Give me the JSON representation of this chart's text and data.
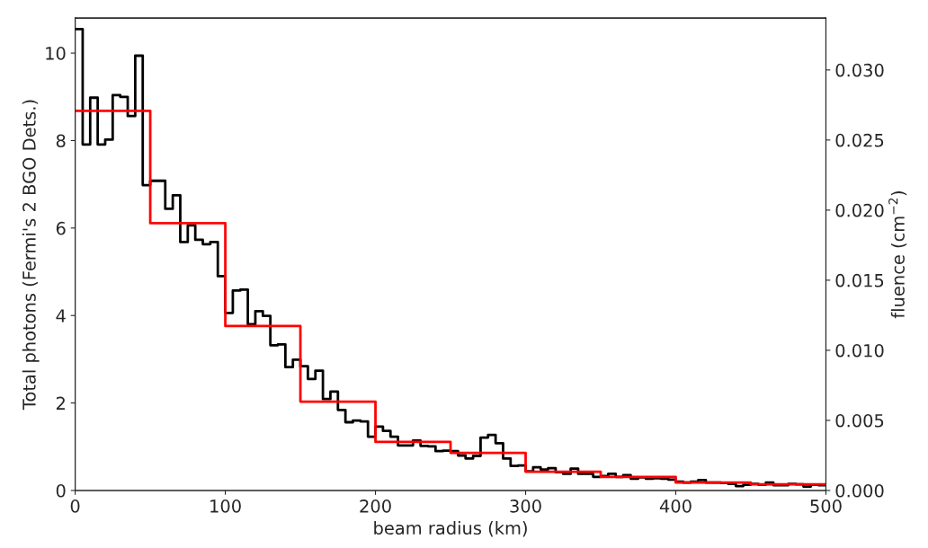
{
  "chart_data": {
    "type": "step",
    "xlabel": "beam radius (km)",
    "ylabel": "Total photons (Fermi's 2 BGO Dets.)",
    "y2label": "fluence (cm$^{−2}$)",
    "xlim": [
      0,
      500
    ],
    "xticks": [
      0,
      100,
      200,
      300,
      400,
      500
    ],
    "ylim": [
      0,
      10.8
    ],
    "yticks": [
      0,
      2,
      4,
      6,
      8,
      10
    ],
    "y2lim": [
      0,
      0.0337
    ],
    "y2ticks": [
      {
        "value": 0,
        "label": "0.000"
      },
      {
        "value": 0.005,
        "label": "0.005"
      },
      {
        "value": 0.01,
        "label": "0.010"
      },
      {
        "value": 0.015,
        "label": "0.015"
      },
      {
        "value": 0.02,
        "label": "0.020"
      },
      {
        "value": 0.025,
        "label": "0.025"
      },
      {
        "value": 0.03,
        "label": "0.030"
      }
    ],
    "series": [
      {
        "color": "#000000",
        "x": [
          0,
          5,
          10,
          15,
          20,
          25,
          30,
          35,
          40,
          45,
          50,
          55,
          60,
          65,
          70,
          75,
          80,
          85,
          90,
          95,
          100,
          105,
          110,
          115,
          120,
          125,
          130,
          135,
          140,
          145,
          150,
          155,
          160,
          165,
          170,
          175,
          180,
          185,
          190,
          195,
          200,
          205,
          210,
          215,
          220,
          225,
          230,
          235,
          240,
          245,
          250,
          255,
          260,
          265,
          270,
          275,
          280,
          285,
          290,
          295,
          300,
          305,
          310,
          315,
          320,
          325,
          330,
          335,
          340,
          345,
          350,
          355,
          360,
          365,
          370,
          375,
          380,
          385,
          390,
          395,
          400,
          405,
          410,
          415,
          420,
          425,
          430,
          435,
          440,
          445,
          450,
          455,
          460,
          465,
          470,
          475,
          480,
          485,
          490,
          495,
          500
        ],
        "values": [
          10.55,
          7.91,
          8.98,
          7.91,
          8.02,
          9.04,
          9.0,
          8.56,
          9.94,
          6.98,
          7.08,
          7.08,
          6.44,
          6.75,
          5.68,
          6.06,
          5.73,
          5.63,
          5.68,
          4.9,
          4.06,
          4.57,
          4.59,
          3.8,
          4.1,
          3.99,
          3.32,
          3.34,
          2.82,
          2.99,
          2.84,
          2.55,
          2.74,
          2.09,
          2.26,
          1.84,
          1.56,
          1.6,
          1.58,
          1.23,
          1.46,
          1.36,
          1.23,
          1.03,
          1.03,
          1.14,
          1.02,
          1.01,
          0.9,
          0.91,
          0.9,
          0.8,
          0.73,
          0.79,
          1.21,
          1.27,
          1.08,
          0.73,
          0.56,
          0.57,
          0.44,
          0.53,
          0.48,
          0.51,
          0.42,
          0.38,
          0.5,
          0.38,
          0.38,
          0.31,
          0.33,
          0.38,
          0.31,
          0.35,
          0.27,
          0.3,
          0.27,
          0.28,
          0.27,
          0.25,
          0.2,
          0.18,
          0.2,
          0.24,
          0.18,
          0.18,
          0.17,
          0.15,
          0.1,
          0.13,
          0.15,
          0.13,
          0.18,
          0.12,
          0.12,
          0.15,
          0.14,
          0.09,
          0.13,
          0.12,
          0.12
        ]
      },
      {
        "color": "#ff0000",
        "x": [
          0,
          50,
          100,
          150,
          200,
          250,
          300,
          350,
          400,
          450,
          500
        ],
        "values": [
          8.68,
          6.11,
          3.76,
          2.03,
          1.11,
          0.86,
          0.43,
          0.31,
          0.18,
          0.14,
          0.14
        ]
      }
    ]
  }
}
